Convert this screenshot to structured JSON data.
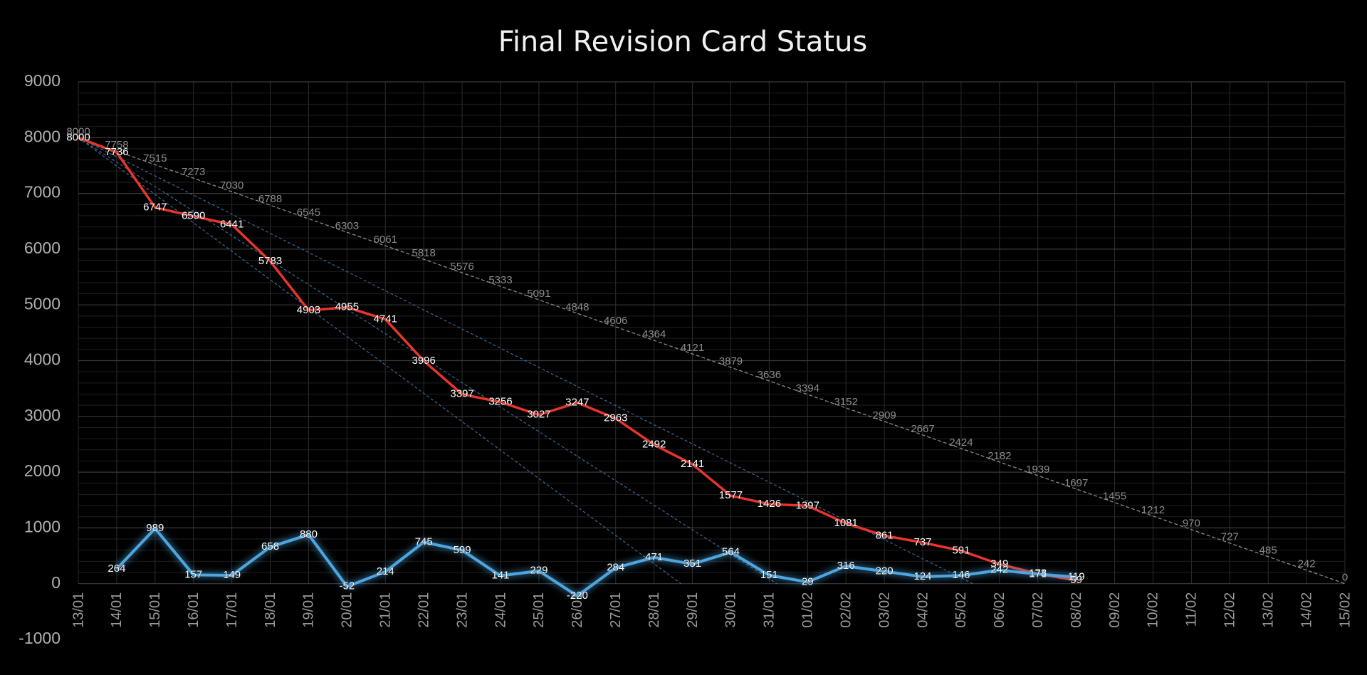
{
  "chart_data": {
    "type": "line",
    "title": "Final Revision Card Status",
    "categories": [
      "13/01",
      "14/01",
      "15/01",
      "16/01",
      "17/01",
      "18/01",
      "19/01",
      "20/01",
      "21/01",
      "22/01",
      "23/01",
      "24/01",
      "25/01",
      "26/01",
      "27/01",
      "28/01",
      "29/01",
      "30/01",
      "31/01",
      "01/02",
      "02/02",
      "03/02",
      "04/02",
      "05/02",
      "06/02",
      "07/02",
      "08/02",
      "09/02",
      "10/02",
      "11/02",
      "12/02",
      "13/02",
      "14/02",
      "15/02"
    ],
    "series": [
      {
        "color": "#8a8a8a",
        "dashed": true,
        "values": [
          8000,
          7758,
          7515,
          7273,
          7030,
          6788,
          6545,
          6303,
          6061,
          5818,
          5576,
          5333,
          5091,
          4848,
          4606,
          4364,
          4121,
          3879,
          3636,
          3394,
          3152,
          2909,
          2667,
          2424,
          2182,
          1939,
          1697,
          1455,
          1212,
          970,
          727,
          485,
          242,
          0
        ]
      },
      {
        "color": "#e8342c",
        "values": [
          8000,
          7736,
          6747,
          6590,
          6441,
          5783,
          4903,
          4955,
          4741,
          3996,
          3397,
          3256,
          3027,
          3247,
          2963,
          2492,
          2141,
          1577,
          1426,
          1397,
          1081,
          861,
          737,
          591,
          349,
          178,
          59,
          null,
          null,
          null,
          null,
          null,
          null,
          null
        ]
      },
      {
        "color": "#4ea6e0",
        "glow": true,
        "values": [
          null,
          264,
          989,
          157,
          149,
          658,
          880,
          -52,
          214,
          745,
          599,
          141,
          229,
          -220,
          284,
          471,
          351,
          564,
          151,
          29,
          316,
          220,
          124,
          146,
          242,
          171,
          119,
          null,
          null,
          null,
          null,
          null,
          null,
          null
        ]
      }
    ],
    "trend_lines": [
      {
        "color": "#3a6a93",
        "x": [
          0,
          15.7
        ],
        "values": [
          8000,
          0
        ]
      },
      {
        "color": "#3a6a93",
        "x": [
          0,
          18.2
        ],
        "values": [
          8000,
          0
        ]
      },
      {
        "color": "#3a6a93",
        "x": [
          0,
          23.3
        ],
        "values": [
          8000,
          0
        ]
      }
    ],
    "ylim": [
      -1000,
      9000
    ],
    "yticks": [
      -1000,
      0,
      1000,
      2000,
      3000,
      4000,
      5000,
      6000,
      7000,
      8000,
      9000
    ],
    "grid": true
  }
}
